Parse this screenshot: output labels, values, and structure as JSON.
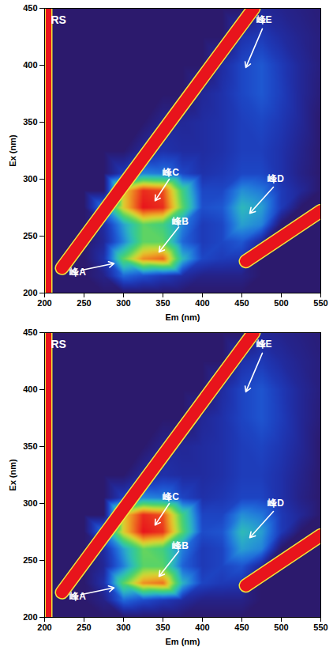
{
  "chart_data": [
    {
      "type": "heatmap",
      "panel_label": "RS",
      "x_label": "Em (nm)",
      "y_label": "Ex (nm)",
      "xlim": [
        200,
        550
      ],
      "ylim": [
        200,
        450
      ],
      "xticks": [
        200,
        250,
        300,
        350,
        400,
        450,
        500,
        550
      ],
      "yticks": [
        200,
        250,
        300,
        350,
        400,
        450
      ],
      "em": [
        200,
        225,
        250,
        275,
        300,
        325,
        350,
        375,
        400,
        425,
        450,
        475,
        500,
        525,
        550
      ],
      "ex": [
        200,
        215,
        230,
        245,
        260,
        275,
        290,
        305,
        325,
        350,
        375,
        400,
        425,
        450
      ],
      "intensity": [
        [
          0,
          0,
          0,
          0,
          0,
          0,
          0,
          0,
          0,
          0,
          0,
          0,
          0,
          0,
          0
        ],
        [
          0,
          0,
          0,
          5,
          25,
          20,
          15,
          10,
          5,
          5,
          5,
          0,
          0,
          0,
          0
        ],
        [
          0,
          0,
          0,
          12,
          55,
          80,
          85,
          40,
          18,
          15,
          14,
          0,
          0,
          0,
          0
        ],
        [
          0,
          0,
          0,
          8,
          30,
          55,
          55,
          25,
          15,
          18,
          22,
          8,
          0,
          0,
          0
        ],
        [
          0,
          0,
          0,
          10,
          35,
          55,
          50,
          30,
          15,
          18,
          35,
          30,
          0,
          0,
          0
        ],
        [
          0,
          0,
          0,
          30,
          70,
          95,
          92,
          55,
          20,
          22,
          40,
          35,
          15,
          0,
          0
        ],
        [
          0,
          0,
          0,
          0,
          70,
          92,
          88,
          50,
          18,
          18,
          32,
          28,
          15,
          8,
          0
        ],
        [
          0,
          0,
          0,
          0,
          15,
          30,
          28,
          18,
          12,
          14,
          18,
          18,
          12,
          5,
          0
        ],
        [
          0,
          0,
          0,
          0,
          0,
          8,
          12,
          10,
          10,
          12,
          16,
          16,
          12,
          6,
          0
        ],
        [
          0,
          0,
          0,
          0,
          0,
          0,
          6,
          8,
          10,
          12,
          16,
          18,
          14,
          8,
          0
        ],
        [
          0,
          0,
          0,
          0,
          0,
          0,
          0,
          0,
          8,
          12,
          18,
          22,
          16,
          8,
          2
        ],
        [
          0,
          0,
          0,
          0,
          0,
          0,
          0,
          0,
          0,
          10,
          18,
          22,
          15,
          8,
          3
        ],
        [
          0,
          0,
          0,
          0,
          0,
          0,
          0,
          0,
          0,
          0,
          12,
          15,
          10,
          6,
          3
        ],
        [
          0,
          0,
          0,
          0,
          0,
          0,
          0,
          0,
          0,
          0,
          0,
          8,
          6,
          4,
          2
        ]
      ],
      "scatter_lines": [
        {
          "color": "#e8141c",
          "em": [
            222,
            465
          ],
          "ex": [
            222,
            450
          ]
        },
        {
          "color": "#e8141c",
          "em": [
            455,
            550
          ],
          "ex": [
            228,
            272
          ]
        },
        {
          "color": "#e8141c",
          "em": [
            205,
            205
          ],
          "ex": [
            200,
            450
          ]
        }
      ],
      "annotations": [
        {
          "text": "峰A",
          "x": 242,
          "y": 218,
          "arrow_from": [
            246,
            220
          ],
          "arrow_to": [
            288,
            226
          ]
        },
        {
          "text": "峰B",
          "x": 372,
          "y": 263,
          "arrow_from": [
            370,
            258
          ],
          "arrow_to": [
            345,
            236
          ]
        },
        {
          "text": "峰C",
          "x": 360,
          "y": 306,
          "arrow_from": [
            358,
            300
          ],
          "arrow_to": [
            340,
            281
          ]
        },
        {
          "text": "峰D",
          "x": 493,
          "y": 300,
          "arrow_from": [
            490,
            293
          ],
          "arrow_to": [
            460,
            270
          ]
        },
        {
          "text": "峰E",
          "x": 478,
          "y": 440,
          "arrow_from": [
            476,
            432
          ],
          "arrow_to": [
            455,
            398
          ]
        }
      ]
    },
    {
      "type": "heatmap",
      "panel_label": "RS",
      "x_label": "Em (nm)",
      "y_label": "Ex (nm)",
      "xlim": [
        200,
        550
      ],
      "ylim": [
        200,
        450
      ],
      "xticks": [
        200,
        250,
        300,
        350,
        400,
        450,
        500,
        550
      ],
      "yticks": [
        200,
        250,
        300,
        350,
        400,
        450
      ],
      "em": [
        200,
        225,
        250,
        275,
        300,
        325,
        350,
        375,
        400,
        425,
        450,
        475,
        500,
        525,
        550
      ],
      "ex": [
        200,
        215,
        230,
        245,
        260,
        275,
        290,
        305,
        325,
        350,
        375,
        400,
        425,
        450
      ],
      "intensity": [
        [
          0,
          0,
          0,
          0,
          0,
          0,
          0,
          0,
          0,
          0,
          0,
          0,
          0,
          0,
          0
        ],
        [
          0,
          0,
          0,
          5,
          26,
          20,
          15,
          10,
          5,
          5,
          5,
          0,
          0,
          0,
          0
        ],
        [
          0,
          0,
          0,
          12,
          56,
          82,
          86,
          40,
          18,
          15,
          14,
          0,
          0,
          0,
          0
        ],
        [
          0,
          0,
          0,
          8,
          30,
          56,
          56,
          25,
          15,
          18,
          22,
          8,
          0,
          0,
          0
        ],
        [
          0,
          0,
          0,
          10,
          36,
          58,
          52,
          30,
          15,
          18,
          36,
          31,
          0,
          0,
          0
        ],
        [
          0,
          0,
          0,
          30,
          72,
          98,
          94,
          56,
          20,
          22,
          42,
          36,
          15,
          0,
          0
        ],
        [
          0,
          0,
          0,
          0,
          72,
          95,
          90,
          52,
          18,
          18,
          33,
          29,
          15,
          8,
          0
        ],
        [
          0,
          0,
          0,
          0,
          16,
          32,
          30,
          18,
          12,
          14,
          18,
          18,
          12,
          5,
          0
        ],
        [
          0,
          0,
          0,
          0,
          0,
          8,
          12,
          10,
          10,
          12,
          16,
          16,
          12,
          6,
          0
        ],
        [
          0,
          0,
          0,
          0,
          0,
          0,
          6,
          8,
          10,
          12,
          16,
          18,
          14,
          8,
          0
        ],
        [
          0,
          0,
          0,
          0,
          0,
          0,
          0,
          0,
          8,
          12,
          18,
          22,
          16,
          8,
          2
        ],
        [
          0,
          0,
          0,
          0,
          0,
          0,
          0,
          0,
          0,
          10,
          18,
          22,
          15,
          8,
          3
        ],
        [
          0,
          0,
          0,
          0,
          0,
          0,
          0,
          0,
          0,
          0,
          12,
          15,
          10,
          6,
          3
        ],
        [
          0,
          0,
          0,
          0,
          0,
          0,
          0,
          0,
          0,
          0,
          0,
          8,
          6,
          4,
          2
        ]
      ],
      "scatter_lines": [
        {
          "color": "#e8141c",
          "em": [
            222,
            465
          ],
          "ex": [
            222,
            450
          ]
        },
        {
          "color": "#e8141c",
          "em": [
            455,
            550
          ],
          "ex": [
            228,
            272
          ]
        },
        {
          "color": "#e8141c",
          "em": [
            205,
            205
          ],
          "ex": [
            200,
            450
          ]
        }
      ],
      "annotations": [
        {
          "text": "峰A",
          "x": 242,
          "y": 218,
          "arrow_from": [
            246,
            220
          ],
          "arrow_to": [
            288,
            226
          ]
        },
        {
          "text": "峰B",
          "x": 372,
          "y": 263,
          "arrow_from": [
            370,
            258
          ],
          "arrow_to": [
            345,
            236
          ]
        },
        {
          "text": "峰C",
          "x": 360,
          "y": 306,
          "arrow_from": [
            358,
            300
          ],
          "arrow_to": [
            340,
            281
          ]
        },
        {
          "text": "峰D",
          "x": 493,
          "y": 300,
          "arrow_from": [
            490,
            293
          ],
          "arrow_to": [
            460,
            270
          ]
        },
        {
          "text": "峰E",
          "x": 478,
          "y": 440,
          "arrow_from": [
            476,
            432
          ],
          "arrow_to": [
            455,
            398
          ]
        }
      ]
    }
  ]
}
